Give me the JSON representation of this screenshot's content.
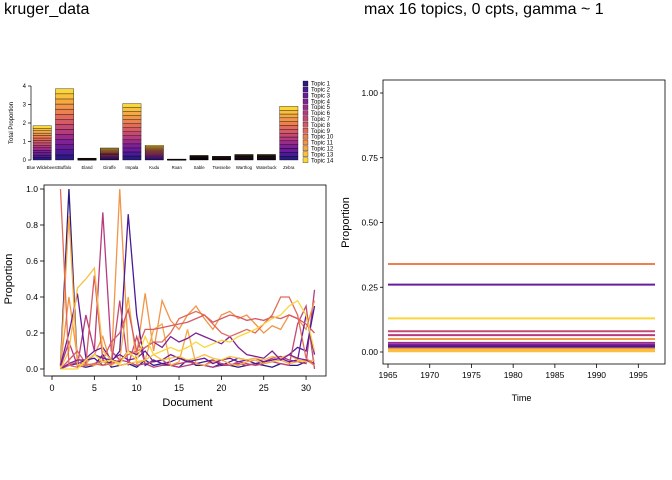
{
  "titles": {
    "left": "kruger_data",
    "right": "max 16 topics, 0 cpts, gamma ~ 1"
  },
  "palette": [
    "#2c1a80",
    "#4a1a98",
    "#6a1b9a",
    "#7e2196",
    "#9a2a8c",
    "#b63b7e",
    "#c44a72",
    "#d65a66",
    "#e36a5a",
    "#ec8050",
    "#f19548",
    "#f6a942",
    "#f9c040",
    "#fbd63a"
  ],
  "chart_data": [
    {
      "type": "bar",
      "stacked": true,
      "ylabel": "Total Proportion",
      "ylim": [
        0,
        4
      ],
      "yticks": [
        0,
        1,
        2,
        3,
        4
      ],
      "categories": [
        "Blue Wildebeest",
        "Buffalo",
        "Eland",
        "Giraffe",
        "Impala",
        "Kudu",
        "Roan",
        "Sable",
        "Tsessebe",
        "Warthog",
        "Waterbuck",
        "Zebra"
      ],
      "totals": [
        1.85,
        3.85,
        0.1,
        0.65,
        3.05,
        0.8,
        0.05,
        0.25,
        0.2,
        0.3,
        0.3,
        2.9
      ],
      "legend": [
        "Topic 1",
        "Topic 2",
        "Topic 3",
        "Topic 4",
        "Topic 5",
        "Topic 6",
        "Topic 7",
        "Topic 8",
        "Topic 9",
        "Topic 10",
        "Topic 11",
        "Topic 12",
        "Topic 13",
        "Topic 14"
      ],
      "legend_position": "right"
    },
    {
      "type": "line",
      "xlabel": "Document",
      "ylabel": "Proportion",
      "xlim": [
        0,
        32
      ],
      "ylim": [
        0,
        1
      ],
      "xticks": [
        0,
        5,
        10,
        15,
        20,
        25,
        30
      ],
      "yticks": [
        "0.0",
        "0.2",
        "0.4",
        "0.6",
        "0.8",
        "1.0"
      ],
      "x": [
        1,
        2,
        3,
        4,
        5,
        6,
        7,
        8,
        9,
        10,
        11,
        12,
        13,
        14,
        15,
        16,
        17,
        18,
        19,
        20,
        21,
        22,
        23,
        24,
        25,
        26,
        27,
        28,
        29,
        30,
        31
      ],
      "series": [
        {
          "values": [
            0.02,
            1.0,
            0.02,
            0.01,
            0.02,
            0.08,
            0.01,
            0.02,
            0.03,
            0.01,
            0.05,
            0.02,
            0.03,
            0.02,
            0.01,
            0.05,
            0.02,
            0.02,
            0.01,
            0.03,
            0.02,
            0.01,
            0.02,
            0.03,
            0.02,
            0.01,
            0.03,
            0.02,
            0.02,
            0.04,
            0.05
          ]
        },
        {
          "values": [
            0.01,
            0.15,
            0.02,
            0.3,
            0.1,
            0.87,
            0.1,
            0.05,
            0.04,
            0.02,
            0.03,
            0.01,
            0.02,
            0.02,
            0.01,
            0.02,
            0.03,
            0.02,
            0.01,
            0.02,
            0.02,
            0.03,
            0.02,
            0.03,
            0.04,
            0.06,
            0.07,
            0.05,
            0.04,
            0.03,
            0.44
          ]
        },
        {
          "values": [
            0.02,
            0.4,
            0.06,
            0.03,
            0.08,
            0.18,
            0.02,
            1.0,
            0.1,
            0.08,
            0.42,
            0.1,
            0.38,
            0.27,
            0.22,
            0.3,
            0.35,
            0.28,
            0.22,
            0.3,
            0.32,
            0.28,
            0.3,
            0.25,
            0.2,
            0.24,
            0.22,
            0.3,
            0.28,
            0.22,
            0.38
          ]
        },
        {
          "values": [
            0.01,
            0.02,
            0.03,
            0.05,
            0.06,
            0.02,
            0.04,
            0.1,
            0.86,
            0.3,
            0.02,
            0.05,
            0.03,
            0.04,
            0.06,
            0.05,
            0.03,
            0.04,
            0.05,
            0.02,
            0.04,
            0.06,
            0.05,
            0.03,
            0.04,
            0.05,
            0.06,
            0.08,
            0.12,
            0.1,
            0.35
          ]
        },
        {
          "values": [
            0.0,
            0.02,
            0.04,
            0.02,
            0.03,
            0.05,
            0.02,
            0.38,
            0.02,
            0.18,
            0.03,
            0.04,
            0.05,
            0.02,
            0.03,
            0.04,
            0.03,
            0.02,
            0.05,
            0.03,
            0.02,
            0.04,
            0.03,
            0.02,
            0.03,
            0.04,
            0.03,
            0.02,
            0.25,
            0.35,
            0.0
          ]
        },
        {
          "values": [
            0.01,
            0.85,
            0.02,
            0.03,
            0.02,
            0.04,
            0.02,
            0.05,
            0.4,
            0.03,
            0.05,
            0.22,
            0.25,
            0.02,
            0.04,
            0.22,
            0.03,
            0.02,
            0.04,
            0.05,
            0.03,
            0.02,
            0.04,
            0.05,
            0.03,
            0.04,
            0.05,
            0.03,
            0.04,
            0.05,
            0.02
          ]
        },
        {
          "values": [
            0.02,
            0.2,
            0.42,
            0.06,
            0.1,
            0.12,
            0.05,
            0.08,
            0.05,
            0.06,
            0.1,
            0.04,
            0.05,
            0.08,
            0.06,
            0.04,
            0.05,
            0.06,
            0.03,
            0.05,
            0.06,
            0.04,
            0.05,
            0.06,
            0.04,
            0.05,
            0.06,
            0.04,
            0.05,
            0.3,
            0.08
          ]
        },
        {
          "values": [
            0.0,
            0.05,
            0.1,
            0.03,
            0.52,
            0.05,
            0.15,
            0.2,
            0.33,
            0.1,
            0.22,
            0.22,
            0.23,
            0.24,
            0.25,
            0.26,
            0.28,
            0.3,
            0.26,
            0.28,
            0.3,
            0.29,
            0.27,
            0.28,
            0.27,
            0.29,
            0.28,
            0.3,
            0.28,
            0.25,
            0.2
          ]
        },
        {
          "values": [
            0.0,
            0.1,
            0.45,
            0.5,
            0.56,
            0.1,
            0.05,
            0.02,
            0.03,
            0.04,
            0.05,
            0.08,
            0.05,
            0.06,
            0.07,
            0.05,
            0.06,
            0.08,
            0.06,
            0.05,
            0.07,
            0.06,
            0.05,
            0.06,
            0.05,
            0.07,
            0.06,
            0.08,
            0.05,
            0.04,
            0.05
          ]
        },
        {
          "values": [
            0.0,
            0.03,
            0.05,
            0.05,
            0.08,
            0.06,
            0.05,
            0.04,
            0.1,
            0.08,
            0.12,
            0.15,
            0.12,
            0.18,
            0.15,
            0.17,
            0.2,
            0.18,
            0.16,
            0.14,
            0.18,
            0.12,
            0.08,
            0.07,
            0.06,
            0.1,
            0.05,
            0.08,
            0.06,
            0.05,
            0.03
          ]
        },
        {
          "values": [
            1.0,
            0.02,
            0.01,
            0.02,
            0.03,
            0.02,
            0.03,
            0.05,
            0.08,
            0.1,
            0.12,
            0.15,
            0.15,
            0.2,
            0.28,
            0.3,
            0.32,
            0.3,
            0.25,
            0.2,
            0.18,
            0.2,
            0.22,
            0.2,
            0.25,
            0.3,
            0.4,
            0.4,
            0.3,
            0.06,
            0.02
          ]
        },
        {
          "values": [
            0.0,
            0.0,
            0.0,
            0.05,
            0.08,
            0.04,
            0.05,
            0.03,
            0.1,
            0.05,
            0.18,
            0.08,
            0.1,
            0.12,
            0.1,
            0.12,
            0.15,
            0.12,
            0.14,
            0.16,
            0.15,
            0.18,
            0.2,
            0.22,
            0.25,
            0.28,
            0.3,
            0.35,
            0.38,
            0.3,
            0.1
          ]
        }
      ]
    },
    {
      "type": "line",
      "xlabel": "Time",
      "ylabel": "Proportion",
      "xlim": [
        1965,
        1997
      ],
      "ylim": [
        0,
        1
      ],
      "xticks": [
        1965,
        1970,
        1975,
        1980,
        1985,
        1990,
        1995
      ],
      "yticks": [
        "0.00",
        "0.25",
        "0.50",
        "0.75",
        "1.00"
      ],
      "levels": [
        0.34,
        0.26,
        0.13,
        0.08,
        0.065,
        0.05,
        0.035,
        0.025,
        0.02,
        0.015,
        0.012,
        0.01,
        0.008,
        0.005
      ]
    }
  ]
}
